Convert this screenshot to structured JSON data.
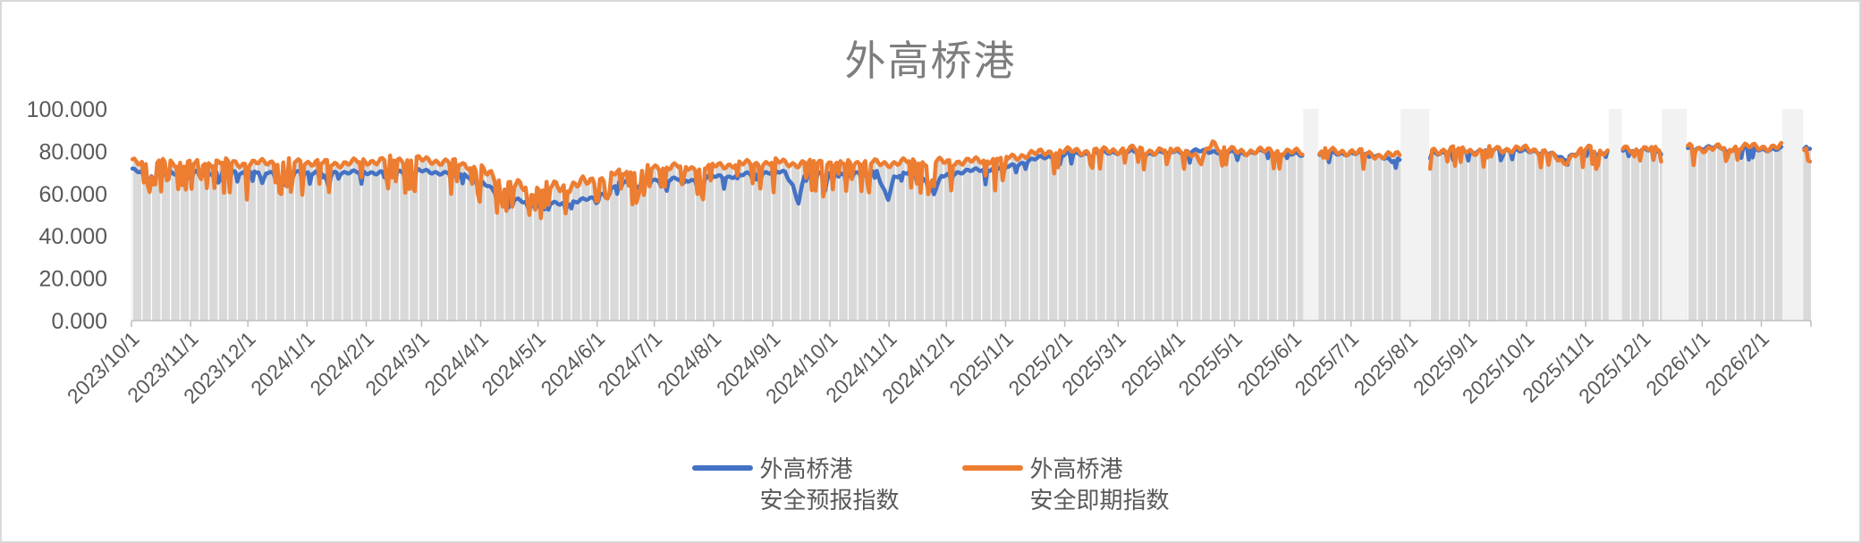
{
  "chart_data": {
    "type": "combo",
    "title": "外高桥港",
    "legend_position": "bottom",
    "grid": "off",
    "x_axis": {
      "kind": "date-daily",
      "start_date": "2023/10/1",
      "end_date": "2026/2/26",
      "days_total": 880,
      "tick_labels": [
        "2023/10/1",
        "2023/11/1",
        "2023/12/1",
        "2024/1/1",
        "2024/2/1",
        "2024/3/1",
        "2024/4/1",
        "2024/5/1",
        "2024/6/1",
        "2024/7/1",
        "2024/8/1",
        "2024/9/1",
        "2024/10/1",
        "2024/11/1",
        "2024/12/1",
        "2025/1/1",
        "2025/2/1",
        "2025/3/1",
        "2025/4/1",
        "2025/5/1",
        "2025/6/1",
        "2025/7/1",
        "2025/8/1",
        "2025/9/1",
        "2025/10/1",
        "2025/11/1",
        "2025/12/1",
        "2026/1/1",
        "2026/2/1"
      ],
      "tick_day_offsets": [
        0,
        31,
        61,
        92,
        123,
        152,
        183,
        213,
        244,
        274,
        305,
        336,
        366,
        397,
        427,
        458,
        489,
        517,
        548,
        578,
        609,
        639,
        670,
        701,
        731,
        762,
        792,
        823,
        854
      ],
      "label_rotation_deg": -45
    },
    "y_axis": {
      "min": 0,
      "max": 100,
      "tick_step": 20,
      "tick_labels": [
        "0.000",
        "20.000",
        "40.000",
        "60.000",
        "80.000",
        "100.000"
      ],
      "tick_values": [
        0,
        20,
        40,
        60,
        80,
        100
      ]
    },
    "data_gaps": {
      "note": "day index ranges (inclusive) with no data, shown as pale vertical strips",
      "day_ranges": [
        [
          614,
          621
        ],
        [
          665,
          679
        ],
        [
          774,
          780
        ],
        [
          802,
          814
        ],
        [
          865,
          875
        ]
      ],
      "date_ranges": [
        [
          "2025/6/6",
          "2025/6/13"
        ],
        [
          "2025/7/27",
          "2025/8/10"
        ],
        [
          "2025/11/13",
          "2025/11/19"
        ],
        [
          "2025/12/11",
          "2025/12/23"
        ],
        [
          "2026/2/12",
          "2026/2/22"
        ]
      ],
      "strip_color": "#F2F2F2"
    },
    "series": [
      {
        "name": "外高桥港 安全预报指数",
        "legend_line1": "外高桥港",
        "legend_line2": "安全预报指数",
        "type": "line",
        "color": "#4472C4",
        "approx_daily_range": "mostly 69-72 in 2023-2024, drops to ~55-58 Apr-May 2024, rises to ~78-82 from Jan 2025 onward",
        "control_points": [
          [
            0,
            71
          ],
          [
            12,
            70
          ],
          [
            25,
            70
          ],
          [
            40,
            70
          ],
          [
            55,
            70
          ],
          [
            66,
            70
          ],
          [
            68,
            64
          ],
          [
            70,
            70
          ],
          [
            85,
            70
          ],
          [
            100,
            70
          ],
          [
            102,
            65
          ],
          [
            105,
            70
          ],
          [
            118,
            70
          ],
          [
            132,
            70
          ],
          [
            146,
            71
          ],
          [
            160,
            70
          ],
          [
            175,
            69
          ],
          [
            185,
            64
          ],
          [
            195,
            58
          ],
          [
            205,
            56
          ],
          [
            218,
            55
          ],
          [
            232,
            56
          ],
          [
            242,
            58
          ],
          [
            250,
            62
          ],
          [
            258,
            66
          ],
          [
            266,
            67
          ],
          [
            274,
            66
          ],
          [
            283,
            67
          ],
          [
            292,
            66
          ],
          [
            302,
            68
          ],
          [
            312,
            68
          ],
          [
            322,
            69
          ],
          [
            332,
            70
          ],
          [
            342,
            70
          ],
          [
            346,
            64
          ],
          [
            349,
            56
          ],
          [
            352,
            68
          ],
          [
            362,
            70
          ],
          [
            370,
            69
          ],
          [
            378,
            70
          ],
          [
            390,
            70
          ],
          [
            393,
            63
          ],
          [
            396,
            58
          ],
          [
            399,
            68
          ],
          [
            408,
            70
          ],
          [
            418,
            66
          ],
          [
            421,
            62
          ],
          [
            424,
            68
          ],
          [
            432,
            70
          ],
          [
            442,
            71
          ],
          [
            452,
            72
          ],
          [
            460,
            73
          ],
          [
            468,
            75
          ],
          [
            476,
            77
          ],
          [
            486,
            78
          ],
          [
            496,
            79
          ],
          [
            508,
            79
          ],
          [
            520,
            80
          ],
          [
            532,
            79
          ],
          [
            544,
            80
          ],
          [
            556,
            80
          ],
          [
            568,
            80
          ],
          [
            580,
            79
          ],
          [
            592,
            80
          ],
          [
            604,
            79
          ],
          [
            613,
            78
          ],
          [
            622,
            79
          ],
          [
            634,
            79
          ],
          [
            646,
            79
          ],
          [
            654,
            78
          ],
          [
            660,
            75
          ],
          [
            664,
            76
          ],
          [
            680,
            79
          ],
          [
            692,
            80
          ],
          [
            704,
            80
          ],
          [
            716,
            81
          ],
          [
            728,
            80
          ],
          [
            740,
            80
          ],
          [
            745,
            78
          ],
          [
            750,
            76
          ],
          [
            755,
            79
          ],
          [
            762,
            80
          ],
          [
            773,
            80
          ],
          [
            781,
            80
          ],
          [
            790,
            81
          ],
          [
            801,
            80
          ],
          [
            815,
            81
          ],
          [
            826,
            82
          ],
          [
            838,
            81
          ],
          [
            850,
            81
          ],
          [
            864,
            81
          ],
          [
            876,
            82
          ],
          [
            879,
            83
          ]
        ],
        "noise": {
          "jitter_amp": 1.1,
          "dip_chance": 0.05,
          "dip_depth": 5,
          "seed": 7,
          "coupling_to_spot_dips": 0.3
        }
      },
      {
        "name": "外高桥港 安全即期指数",
        "legend_line1": "外高桥港",
        "legend_line2": "安全即期指数",
        "type": "line",
        "color": "#ED7D31",
        "approx_daily_range": "baseline ~74-76 with frequent sharp dips to 55-62 in 2023-2024, wild 55-75 in Apr-May 2024, ~78-83 with shallower dips from Jan 2025",
        "control_points": [
          [
            0,
            75
          ],
          [
            15,
            75
          ],
          [
            30,
            74
          ],
          [
            45,
            75
          ],
          [
            60,
            74
          ],
          [
            75,
            75
          ],
          [
            90,
            75
          ],
          [
            105,
            74
          ],
          [
            120,
            75
          ],
          [
            135,
            76
          ],
          [
            150,
            76
          ],
          [
            165,
            75
          ],
          [
            178,
            73
          ],
          [
            188,
            68
          ],
          [
            198,
            64
          ],
          [
            208,
            62
          ],
          [
            220,
            63
          ],
          [
            232,
            64
          ],
          [
            242,
            66
          ],
          [
            252,
            69
          ],
          [
            262,
            71
          ],
          [
            272,
            72
          ],
          [
            283,
            73
          ],
          [
            294,
            72
          ],
          [
            305,
            73
          ],
          [
            316,
            74
          ],
          [
            327,
            74
          ],
          [
            338,
            75
          ],
          [
            349,
            74
          ],
          [
            360,
            75
          ],
          [
            371,
            74
          ],
          [
            382,
            75
          ],
          [
            393,
            74
          ],
          [
            404,
            75
          ],
          [
            415,
            75
          ],
          [
            426,
            75
          ],
          [
            437,
            75
          ],
          [
            448,
            76
          ],
          [
            458,
            77
          ],
          [
            466,
            78
          ],
          [
            474,
            79
          ],
          [
            484,
            80
          ],
          [
            494,
            80
          ],
          [
            508,
            80
          ],
          [
            522,
            81
          ],
          [
            536,
            80
          ],
          [
            550,
            81
          ],
          [
            556,
            78
          ],
          [
            560,
            74
          ],
          [
            563,
            81
          ],
          [
            566,
            85
          ],
          [
            570,
            81
          ],
          [
            578,
            80
          ],
          [
            590,
            80
          ],
          [
            604,
            80
          ],
          [
            613,
            79
          ],
          [
            622,
            80
          ],
          [
            634,
            80
          ],
          [
            646,
            79
          ],
          [
            654,
            78
          ],
          [
            664,
            78
          ],
          [
            680,
            80
          ],
          [
            692,
            81
          ],
          [
            704,
            80
          ],
          [
            716,
            81
          ],
          [
            728,
            81
          ],
          [
            740,
            80
          ],
          [
            745,
            77
          ],
          [
            750,
            74
          ],
          [
            755,
            79
          ],
          [
            762,
            81
          ],
          [
            773,
            80
          ],
          [
            781,
            81
          ],
          [
            790,
            81
          ],
          [
            801,
            81
          ],
          [
            815,
            82
          ],
          [
            826,
            81
          ],
          [
            838,
            82
          ],
          [
            850,
            82
          ],
          [
            864,
            82
          ],
          [
            876,
            82
          ],
          [
            879,
            82
          ]
        ],
        "noise": {
          "jitter_amp": 2.0,
          "dip_chance": 0.22,
          "dip_depth": 16,
          "seed": 13,
          "wild_zone": [
            178,
            250,
            1.7
          ],
          "calm_after_day": [
            460,
            0.55
          ]
        }
      },
      {
        "name": "daily-columns",
        "type": "bar",
        "color": "#D9D9D9",
        "derived": "max(forecast, spot) per day — light gray daily columns hugging the upper envelope of both lines",
        "separator_every_days": 5,
        "separator_color": "#FFFFFF"
      }
    ]
  },
  "colors": {
    "title": "#7D7D7D",
    "axis_labels": "#595959",
    "axis_line": "#BFBFBF",
    "chart_border": "#D9D9D9",
    "plot_background": "#FFFFFF"
  }
}
